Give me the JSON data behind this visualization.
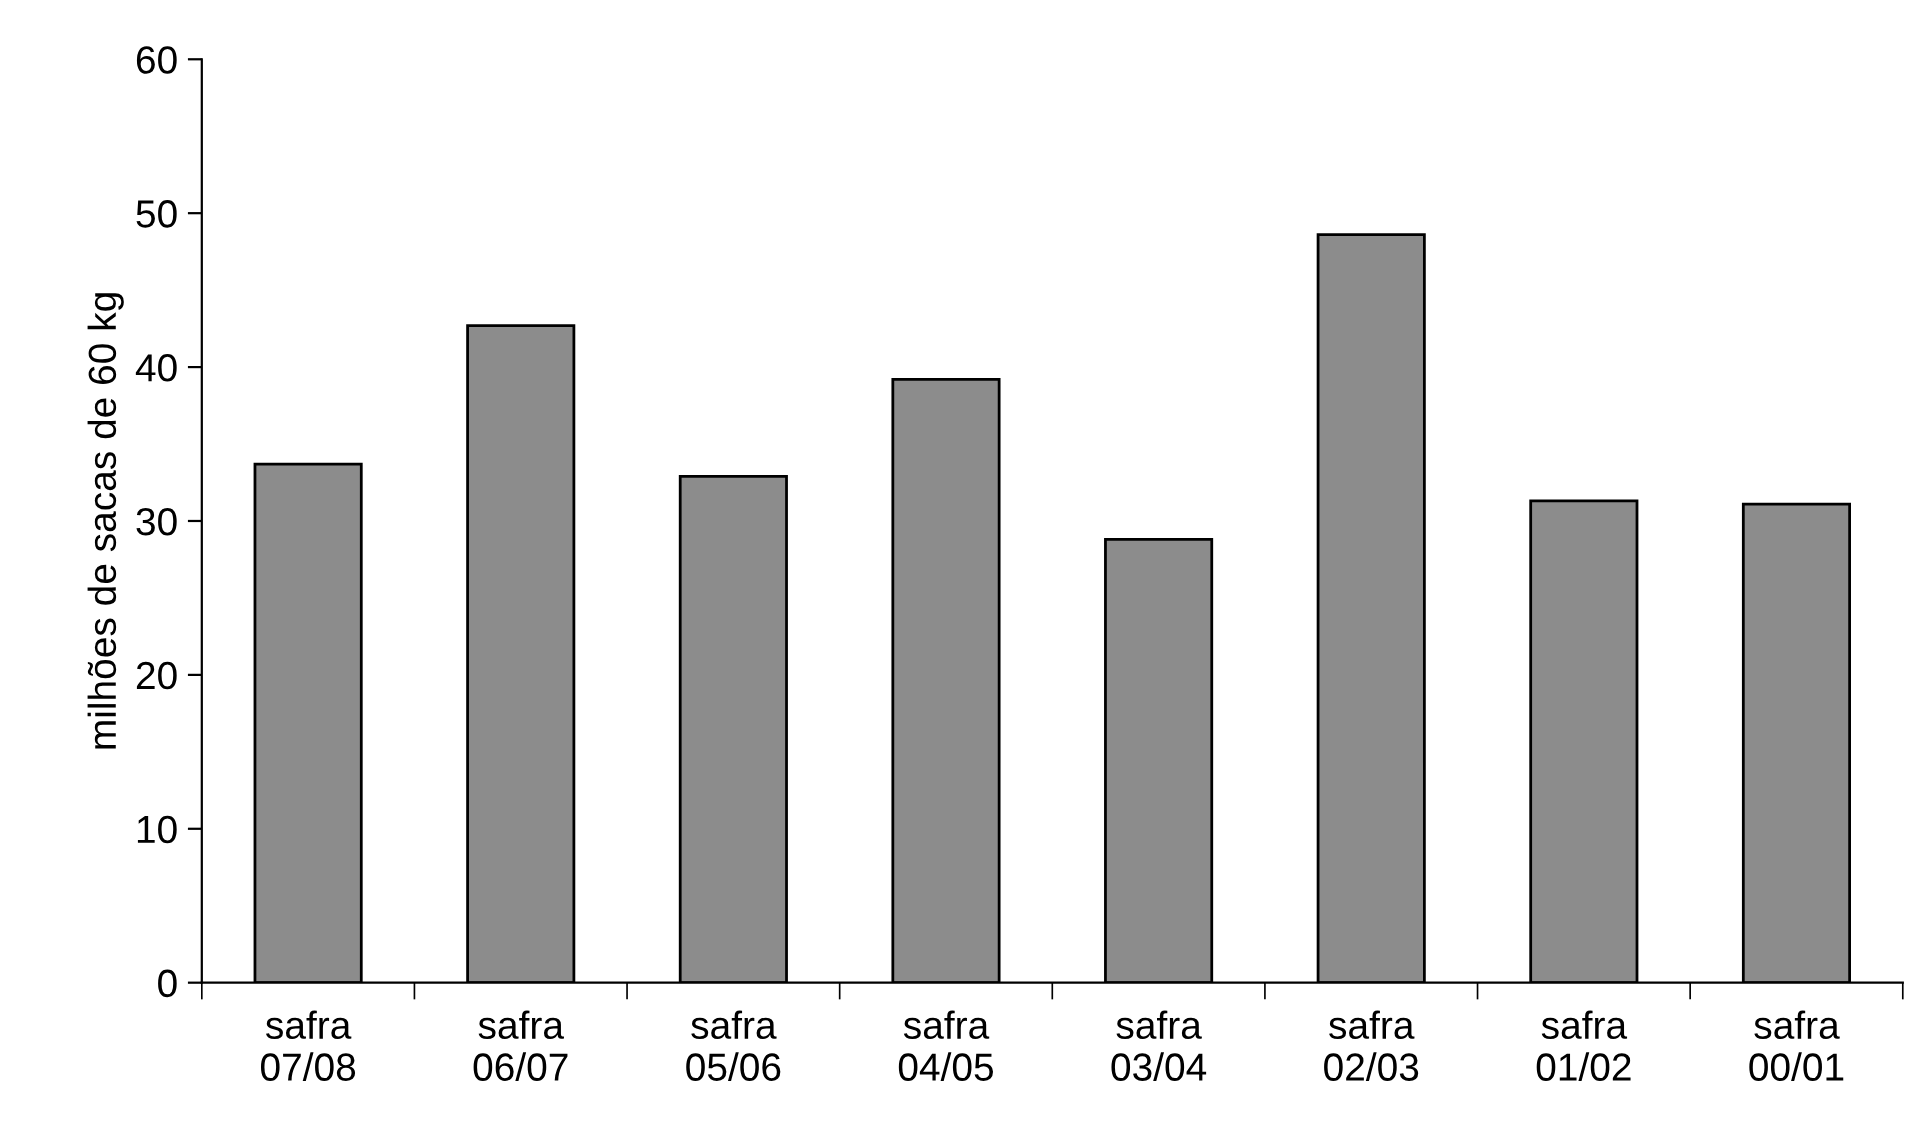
{
  "chart_data": {
    "type": "bar",
    "ylabel": "milhões de sacas de 60 kg",
    "categories": [
      "safra\n07/08",
      "safra\n06/07",
      "safra\n05/06",
      "safra\n04/05",
      "safra\n03/04",
      "safra\n02/03",
      "safra\n01/02",
      "safra\n00/01"
    ],
    "values": [
      33.7,
      42.7,
      32.9,
      39.2,
      28.8,
      48.6,
      31.3,
      31.1
    ],
    "color": "#8c8c8c",
    "ylim": [
      0,
      60
    ],
    "yticks": [
      0,
      10,
      20,
      30,
      40,
      50,
      60
    ],
    "grid": false,
    "legend": false
  }
}
